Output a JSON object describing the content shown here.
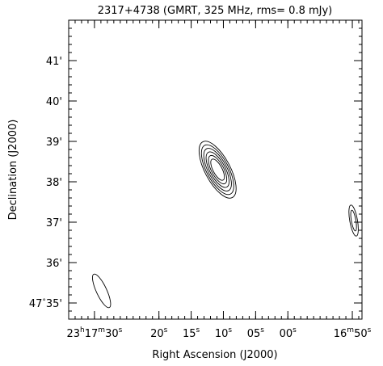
{
  "chart_data": {
    "type": "contour",
    "title": "2317+4738 (GMRT, 325 MHz, rms= 0.8 mJy)",
    "xlabel": "Right Ascension (J2000)",
    "ylabel": "Declination (J2000)",
    "x_unit": "seconds of right ascension after 23h16m50s",
    "y_unit": "arcminutes of declination after +47 deg",
    "xlim": [
      44.0,
      -1.5
    ],
    "ylim": [
      34.6,
      42.0
    ],
    "x_ticks": [
      {
        "value": 40,
        "h": "23",
        "m": "17",
        "s": "30",
        "label_text": "23h17m30s"
      },
      {
        "value": 30,
        "s": "20",
        "label_text": "20s"
      },
      {
        "value": 25,
        "s": "15",
        "label_text": "15s"
      },
      {
        "value": 20,
        "s": "10",
        "label_text": "10s"
      },
      {
        "value": 15,
        "s": "05",
        "label_text": "05s"
      },
      {
        "value": 10,
        "s": "00",
        "label_text": "00s"
      },
      {
        "value": 0,
        "m": "16",
        "s": "50",
        "label_text": "16m50s"
      }
    ],
    "y_ticks": [
      {
        "value": 35,
        "deg": "47",
        "min": "35",
        "label_text": "47°35'"
      },
      {
        "value": 36,
        "min": "36",
        "label_text": "36'"
      },
      {
        "value": 37,
        "min": "37",
        "label_text": "37'"
      },
      {
        "value": 38,
        "min": "38",
        "label_text": "38'"
      },
      {
        "value": 39,
        "min": "39",
        "label_text": "39'"
      },
      {
        "value": 40,
        "min": "40",
        "label_text": "40'"
      },
      {
        "value": 41,
        "min": "41",
        "label_text": "41'"
      }
    ],
    "minor_ticks": {
      "x_step": 1,
      "y_step": 0.2
    },
    "sources": [
      {
        "name": "central-source",
        "ra": 20.9,
        "dec": 38.3,
        "angle": -28,
        "levels": [
          {
            "rx": 1.95,
            "ry": 0.12
          },
          {
            "rx": 1.7,
            "ry": 0.105
          },
          {
            "rx": 1.45,
            "ry": 0.09
          },
          {
            "rx": 1.2,
            "ry": 0.075
          },
          {
            "rx": 0.95,
            "ry": 0.06
          },
          {
            "rx": 0.7,
            "ry": 0.045
          }
        ]
      },
      {
        "name": "southeast-source",
        "ra": 38.9,
        "dec": 35.3,
        "angle": -25,
        "levels": [
          {
            "rx": 0.8,
            "ry": 0.07
          }
        ]
      },
      {
        "name": "west-edge-source",
        "ra": -0.2,
        "dec": 37.04,
        "angle": -10,
        "levels": [
          {
            "rx": 0.6,
            "ry": 0.06
          },
          {
            "rx": 0.35,
            "ry": 0.04
          }
        ]
      }
    ]
  }
}
